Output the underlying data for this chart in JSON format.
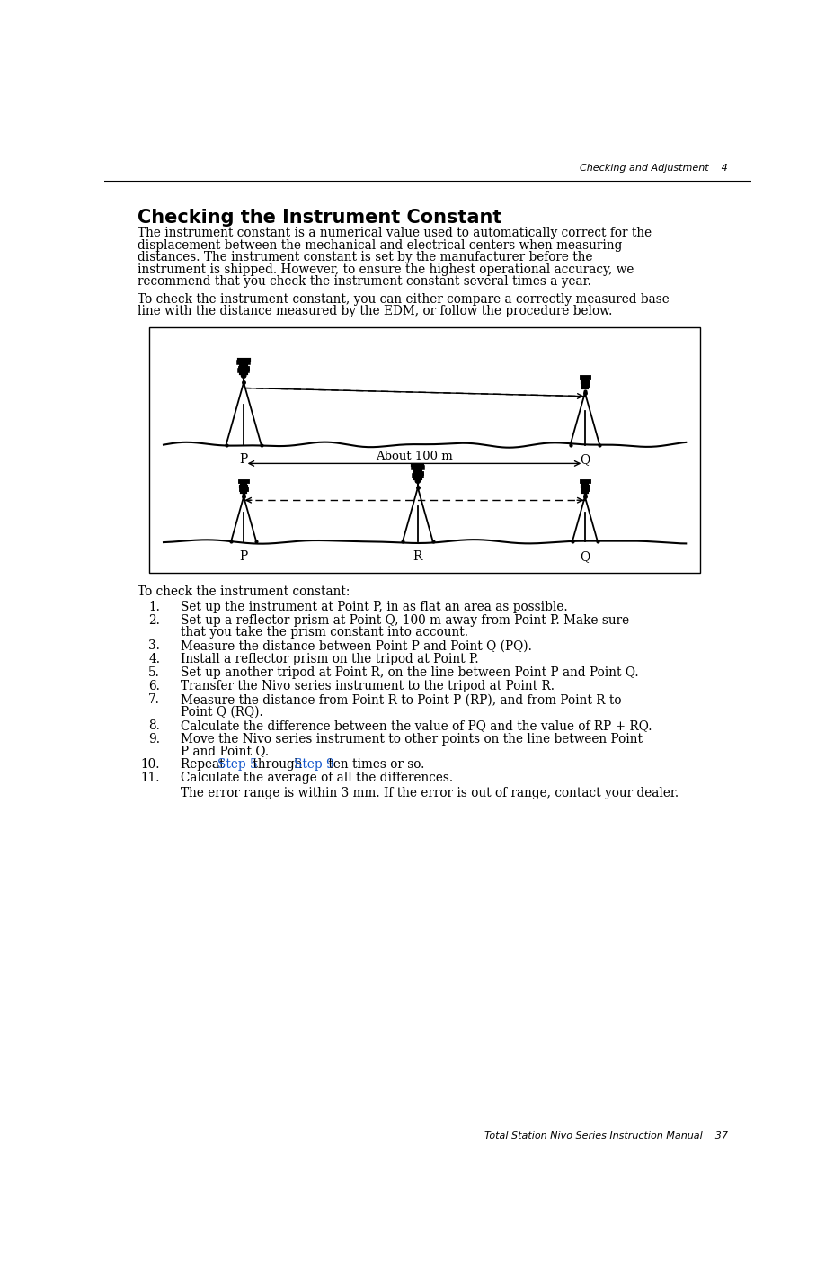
{
  "page_title": "Checking and Adjustment",
  "chapter_num": "4",
  "section_title": "Checking the Instrument Constant",
  "footer_text": "Total Station Nivo Series Instruction Manual",
  "footer_page": "37",
  "body_paragraphs": [
    "The instrument constant is a numerical value used to automatically correct for the displacement between the mechanical and electrical centers when measuring distances. The instrument constant is set by the manufacturer before the instrument is shipped. However, to ensure the highest operational accuracy, we recommend that you check the instrument constant several times a year.",
    "To check the instrument constant, you can either compare a correctly measured base line with the distance measured by the EDM, or follow the procedure below."
  ],
  "procedure_intro": "To check the instrument constant:",
  "steps": [
    {
      "num": "1.",
      "text": "Set up the instrument at Point P, in as flat an area as possible.",
      "parts": null
    },
    {
      "num": "2.",
      "text": "Set up a reflector prism at Point Q, 100 m away from Point P. Make sure that you take the prism constant into account.",
      "parts": null
    },
    {
      "num": "3.",
      "text": "Measure the distance between Point P and Point Q (PQ).",
      "parts": null
    },
    {
      "num": "4.",
      "text": "Install a reflector prism on the tripod at Point P.",
      "parts": null
    },
    {
      "num": "5.",
      "text": "Set up another tripod at Point R, on the line between Point P and Point Q.",
      "parts": null
    },
    {
      "num": "6.",
      "text": "Transfer the Nivo series instrument to the tripod at Point R.",
      "parts": null
    },
    {
      "num": "7.",
      "text": "Measure the distance from Point R to Point P (RP), and from Point R to Point Q (RQ).",
      "parts": null
    },
    {
      "num": "8.",
      "text": "Calculate the difference between the value of PQ and the value of RP + RQ.",
      "parts": null
    },
    {
      "num": "9.",
      "text": "Move the Nivo series instrument to other points on the line between Point P and Point Q.",
      "parts": null
    },
    {
      "num": "10.",
      "text": null,
      "parts": [
        {
          "text": "Repeat ",
          "color": "#000000"
        },
        {
          "text": "Step 5",
          "color": "#1155CC"
        },
        {
          "text": " through ",
          "color": "#000000"
        },
        {
          "text": "Step 9",
          "color": "#1155CC"
        },
        {
          "text": " ten times or so.",
          "color": "#000000"
        }
      ]
    },
    {
      "num": "11.",
      "text": "Calculate the average of all the differences.",
      "parts": null
    }
  ],
  "final_note": "The error range is within 3 mm. If the error is out of range, contact your dealer.",
  "background_color": "#ffffff",
  "text_color": "#000000",
  "link_color": "#1155CC"
}
